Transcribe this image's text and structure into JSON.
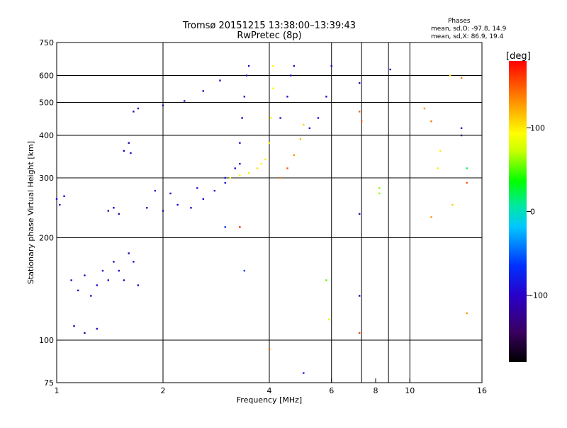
{
  "header": {
    "title_line1": "Tromsø 20151215 13:38:00–13:39:43",
    "title_line2": "RwPretec (8p)"
  },
  "phases_box": {
    "heading": "Phases",
    "line_o": "mean, sd,O: -97.8, 14.9",
    "line_x": "mean, sd,X:  86.9, 19.4"
  },
  "colorbar": {
    "label": "[deg]",
    "ticks": [
      "100",
      "0",
      "-100"
    ],
    "tick_values": [
      100,
      0,
      -100
    ],
    "range": [
      -180,
      180
    ],
    "colormap": "rainbow (black-purple-blue-cyan-green-yellow-orange-red)"
  },
  "chart_data": {
    "type": "scatter",
    "title": "Tromsø 20151215 13:38:00–13:39:43",
    "subtitle": "RwPretec (8p)",
    "xlabel": "Frequency [MHz]",
    "ylabel": "Stationary phase Virtual Height [km]",
    "x_scale": "log",
    "y_scale": "log",
    "xlim": [
      1,
      16
    ],
    "ylim": [
      75,
      750
    ],
    "x_ticks": [
      1,
      2,
      4,
      6,
      8,
      10,
      16
    ],
    "x_tick_labels": [
      "1",
      "2",
      "4",
      "6",
      "8",
      "10",
      "16"
    ],
    "x_grid_lines": [
      2,
      4,
      6,
      7.3,
      8.7,
      10
    ],
    "y_ticks": [
      75,
      100,
      200,
      300,
      400,
      500,
      600,
      750
    ],
    "y_tick_labels": [
      "75",
      "100",
      "200",
      "300",
      "400",
      "500",
      "600",
      "750"
    ],
    "y_grid_lines": [
      100,
      200,
      300,
      400,
      500,
      600
    ],
    "grid": true,
    "color_by": "phase [deg]",
    "series": [
      {
        "points": [
          [
            1.0,
            260,
            -100
          ],
          [
            1.02,
            250,
            -110
          ],
          [
            1.05,
            265,
            -100
          ],
          [
            1.1,
            150,
            -100
          ],
          [
            1.15,
            140,
            -110
          ],
          [
            1.2,
            155,
            -105
          ],
          [
            1.25,
            135,
            -100
          ],
          [
            1.3,
            145,
            -90
          ],
          [
            1.35,
            160,
            -100
          ],
          [
            1.4,
            150,
            -105
          ],
          [
            1.45,
            170,
            -110
          ],
          [
            1.5,
            160,
            -100
          ],
          [
            1.55,
            150,
            -95
          ],
          [
            1.6,
            180,
            -110
          ],
          [
            1.65,
            170,
            -100
          ],
          [
            1.7,
            145,
            -100
          ],
          [
            1.12,
            110,
            -100
          ],
          [
            1.2,
            105,
            -110
          ],
          [
            1.3,
            108,
            -100
          ],
          [
            1.4,
            240,
            -110
          ],
          [
            1.45,
            245,
            -105
          ],
          [
            1.5,
            235,
            -110
          ],
          [
            1.55,
            360,
            -105
          ],
          [
            1.6,
            380,
            -110
          ],
          [
            1.62,
            355,
            -100
          ],
          [
            1.65,
            470,
            -110
          ],
          [
            1.7,
            480,
            -105
          ],
          [
            1.8,
            245,
            -100
          ],
          [
            2.0,
            240,
            -105
          ],
          [
            2.2,
            250,
            -95
          ],
          [
            2.4,
            245,
            -100
          ],
          [
            2.6,
            260,
            -95
          ],
          [
            2.8,
            275,
            -95
          ],
          [
            3.0,
            290,
            -90
          ],
          [
            3.2,
            320,
            -95
          ],
          [
            3.3,
            380,
            -95
          ],
          [
            3.35,
            450,
            -100
          ],
          [
            3.4,
            520,
            -100
          ],
          [
            3.45,
            600,
            -100
          ],
          [
            3.5,
            640,
            -95
          ],
          [
            1.9,
            275,
            -95
          ],
          [
            2.1,
            270,
            -95
          ],
          [
            2.5,
            280,
            -90
          ],
          [
            3.0,
            300,
            -85
          ],
          [
            3.3,
            330,
            -90
          ],
          [
            2.0,
            490,
            -110
          ],
          [
            2.3,
            505,
            -100
          ],
          [
            2.6,
            540,
            -100
          ],
          [
            2.9,
            580,
            -95
          ],
          [
            3.1,
            300,
            90
          ],
          [
            3.3,
            305,
            95
          ],
          [
            3.5,
            310,
            100
          ],
          [
            3.7,
            320,
            105
          ],
          [
            3.9,
            340,
            100
          ],
          [
            4.0,
            380,
            100
          ],
          [
            4.05,
            450,
            95
          ],
          [
            4.1,
            550,
            95
          ],
          [
            4.1,
            640,
            95
          ],
          [
            3.8,
            330,
            90
          ],
          [
            4.3,
            300,
            140
          ],
          [
            4.5,
            320,
            150
          ],
          [
            4.7,
            350,
            130
          ],
          [
            4.9,
            390,
            120
          ],
          [
            5.0,
            430,
            110
          ],
          [
            4.3,
            450,
            -100
          ],
          [
            4.5,
            520,
            -95
          ],
          [
            4.6,
            600,
            -100
          ],
          [
            4.7,
            640,
            -100
          ],
          [
            5.2,
            420,
            -90
          ],
          [
            5.5,
            450,
            -90
          ],
          [
            5.8,
            520,
            -90
          ],
          [
            6.0,
            640,
            -100
          ],
          [
            4.0,
            94,
            150
          ],
          [
            5.0,
            80,
            -80
          ],
          [
            5.8,
            150,
            50
          ],
          [
            5.9,
            115,
            80
          ],
          [
            3.3,
            215,
            170
          ],
          [
            3.4,
            160,
            -60
          ],
          [
            3.0,
            215,
            -70
          ],
          [
            7.2,
            570,
            -90
          ],
          [
            7.2,
            470,
            150
          ],
          [
            7.3,
            440,
            150
          ],
          [
            7.2,
            235,
            -100
          ],
          [
            7.2,
            135,
            -100
          ],
          [
            7.2,
            105,
            160
          ],
          [
            8.2,
            280,
            60
          ],
          [
            8.2,
            270,
            60
          ],
          [
            8.8,
            625,
            -100
          ],
          [
            11.0,
            480,
            130
          ],
          [
            11.5,
            440,
            140
          ],
          [
            12.0,
            320,
            100
          ],
          [
            12.2,
            360,
            100
          ],
          [
            13.0,
            600,
            100
          ],
          [
            13.2,
            250,
            110
          ],
          [
            14.0,
            590,
            140
          ],
          [
            14.0,
            420,
            -100
          ],
          [
            14.0,
            400,
            -140
          ],
          [
            14.5,
            320,
            20
          ],
          [
            14.5,
            290,
            150
          ],
          [
            14.5,
            120,
            130
          ],
          [
            11.5,
            230,
            130
          ]
        ]
      }
    ]
  }
}
